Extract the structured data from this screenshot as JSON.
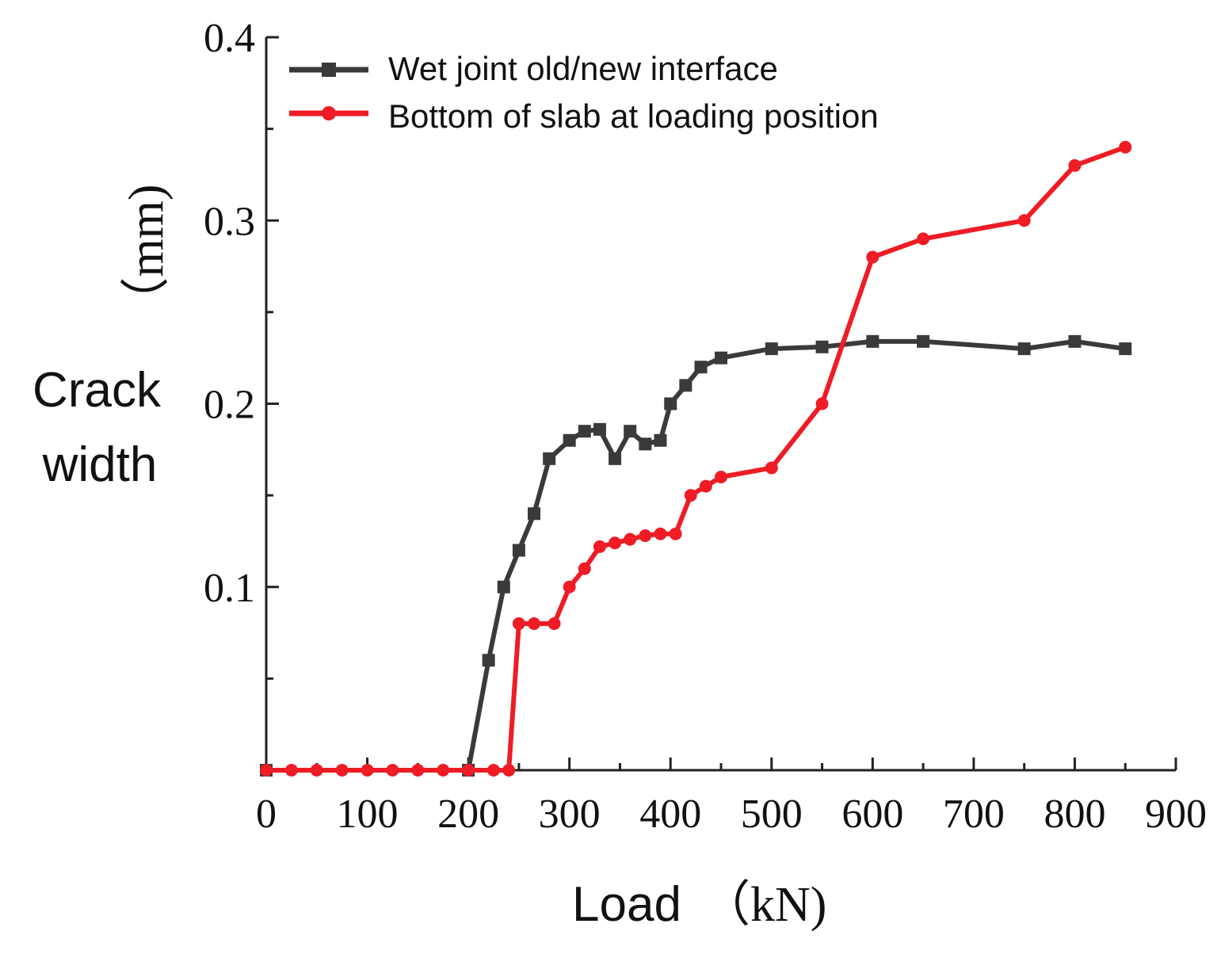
{
  "chart_data": {
    "type": "line",
    "title": "",
    "xlabel": "Load（kN)",
    "ylabel": "Crack width（mm)",
    "ylabel_parts": {
      "line1": "Crack",
      "line2": "width",
      "unit": "（mm)"
    },
    "xlabel_parts": {
      "word": "Load",
      "unit": "（kN)"
    },
    "xlim": [
      0,
      900
    ],
    "ylim": [
      0,
      0.4
    ],
    "xticks": [
      "0",
      "100",
      "200",
      "300",
      "400",
      "500",
      "600",
      "700",
      "800",
      "900"
    ],
    "yticks": [
      "0.1",
      "0.2",
      "0.3",
      "0.4"
    ],
    "grid": false,
    "legend_position": "top-left",
    "series": [
      {
        "name": "Wet joint old/new interface",
        "color": "#3a3a3a",
        "marker": "square",
        "points": [
          [
            0,
            0
          ],
          [
            200,
            0
          ],
          [
            220,
            0.06
          ],
          [
            235,
            0.1
          ],
          [
            250,
            0.12
          ],
          [
            265,
            0.14
          ],
          [
            280,
            0.17
          ],
          [
            300,
            0.18
          ],
          [
            315,
            0.185
          ],
          [
            330,
            0.186
          ],
          [
            345,
            0.17
          ],
          [
            360,
            0.185
          ],
          [
            375,
            0.178
          ],
          [
            390,
            0.18
          ],
          [
            400,
            0.2
          ],
          [
            415,
            0.21
          ],
          [
            430,
            0.22
          ],
          [
            450,
            0.225
          ],
          [
            500,
            0.23
          ],
          [
            550,
            0.231
          ],
          [
            600,
            0.234
          ],
          [
            650,
            0.234
          ],
          [
            750,
            0.23
          ],
          [
            800,
            0.234
          ],
          [
            850,
            0.23
          ]
        ]
      },
      {
        "name": "Bottom of slab at loading position",
        "color": "#ee1c25",
        "marker": "circle",
        "points": [
          [
            0,
            0
          ],
          [
            25,
            0
          ],
          [
            50,
            0
          ],
          [
            75,
            0
          ],
          [
            100,
            0
          ],
          [
            125,
            0
          ],
          [
            150,
            0
          ],
          [
            175,
            0
          ],
          [
            200,
            0
          ],
          [
            225,
            0
          ],
          [
            240,
            0
          ],
          [
            250,
            0.08
          ],
          [
            265,
            0.08
          ],
          [
            285,
            0.08
          ],
          [
            300,
            0.1
          ],
          [
            315,
            0.11
          ],
          [
            330,
            0.122
          ],
          [
            345,
            0.124
          ],
          [
            360,
            0.126
          ],
          [
            375,
            0.128
          ],
          [
            390,
            0.129
          ],
          [
            405,
            0.129
          ],
          [
            420,
            0.15
          ],
          [
            435,
            0.155
          ],
          [
            450,
            0.16
          ],
          [
            500,
            0.165
          ],
          [
            550,
            0.2
          ],
          [
            600,
            0.28
          ],
          [
            650,
            0.29
          ],
          [
            750,
            0.3
          ],
          [
            800,
            0.33
          ],
          [
            850,
            0.34
          ]
        ]
      }
    ]
  }
}
